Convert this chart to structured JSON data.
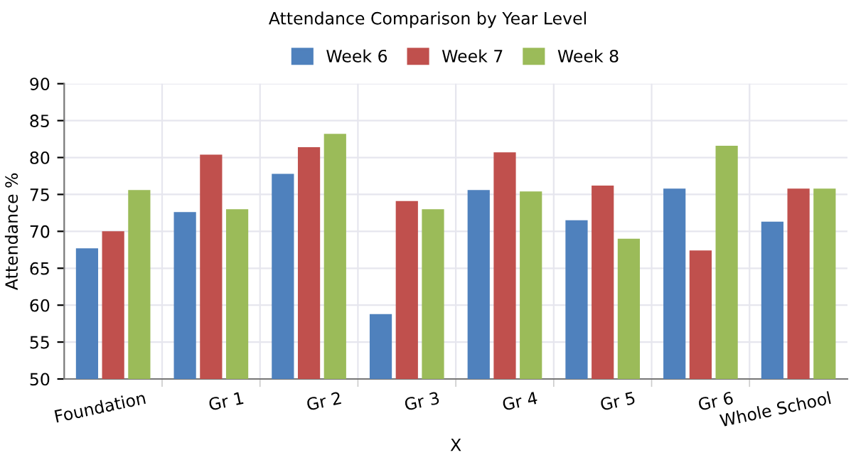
{
  "chart_data": {
    "type": "bar",
    "title": "Attendance Comparison by Year Level",
    "xlabel": "X",
    "ylabel": "Attendance %",
    "categories": [
      "Foundation",
      "Gr 1",
      "Gr 2",
      "Gr 3",
      "Gr 4",
      "Gr 5",
      "Gr 6",
      "Whole School"
    ],
    "series": [
      {
        "name": "Week 6",
        "color": "#4f81bd",
        "values": [
          67.7,
          72.6,
          77.8,
          58.8,
          75.6,
          71.5,
          75.8,
          71.3
        ]
      },
      {
        "name": "Week 7",
        "color": "#c0504d",
        "values": [
          70.0,
          80.4,
          81.4,
          74.1,
          80.7,
          76.2,
          67.4,
          75.8
        ]
      },
      {
        "name": "Week 8",
        "color": "#9bbb59",
        "values": [
          75.6,
          73.0,
          83.2,
          73.0,
          75.4,
          69.0,
          81.6,
          75.8
        ]
      }
    ],
    "ylim": [
      50,
      90
    ],
    "yticks": [
      50,
      55,
      60,
      65,
      70,
      75,
      80,
      85,
      90
    ],
    "grid": true,
    "legend": "top"
  }
}
